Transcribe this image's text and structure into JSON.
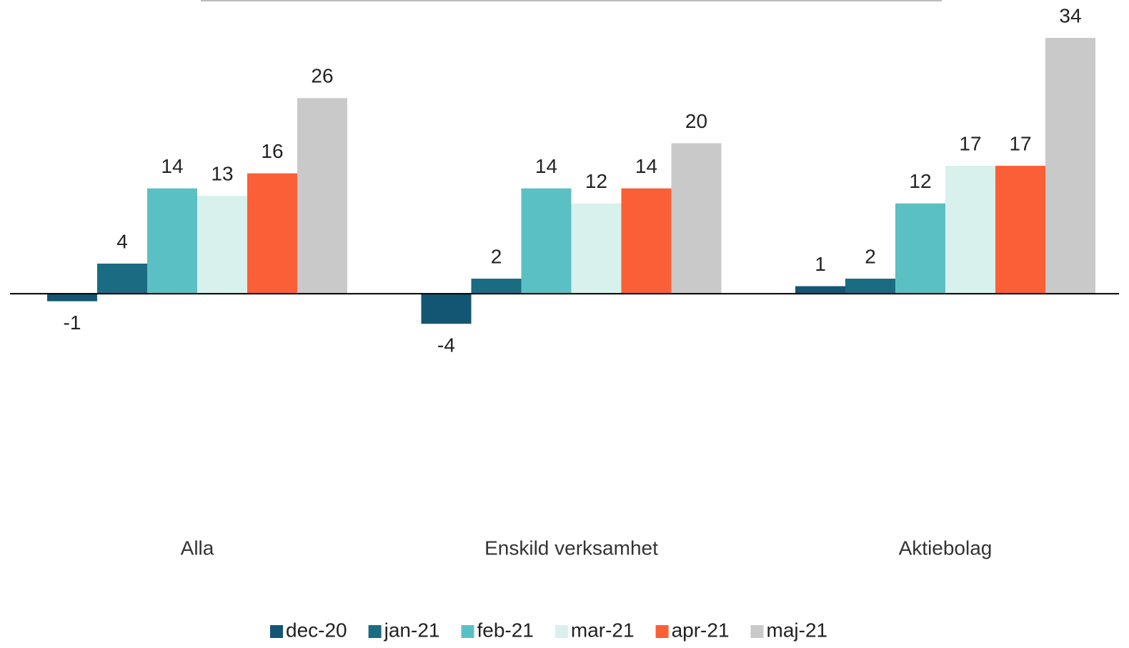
{
  "chart_data": {
    "type": "bar",
    "categories": [
      "Alla",
      "Enskild verksamhet",
      "Aktiebolag"
    ],
    "series": [
      {
        "name": "dec-20",
        "color": "#135674",
        "values": [
          -1,
          -4,
          1
        ]
      },
      {
        "name": "jan-21",
        "color": "#1b6b82",
        "values": [
          4,
          2,
          2
        ]
      },
      {
        "name": "feb-21",
        "color": "#5bc0c4",
        "values": [
          14,
          14,
          12
        ]
      },
      {
        "name": "mar-21",
        "color": "#d8f1ec",
        "values": [
          13,
          12,
          17
        ]
      },
      {
        "name": "apr-21",
        "color": "#fb5f37",
        "values": [
          16,
          14,
          17
        ]
      },
      {
        "name": "maj-21",
        "color": "#c9c9c9",
        "values": [
          26,
          20,
          34
        ]
      }
    ],
    "ylim": [
      -30,
      36
    ],
    "legend": "bottom"
  }
}
